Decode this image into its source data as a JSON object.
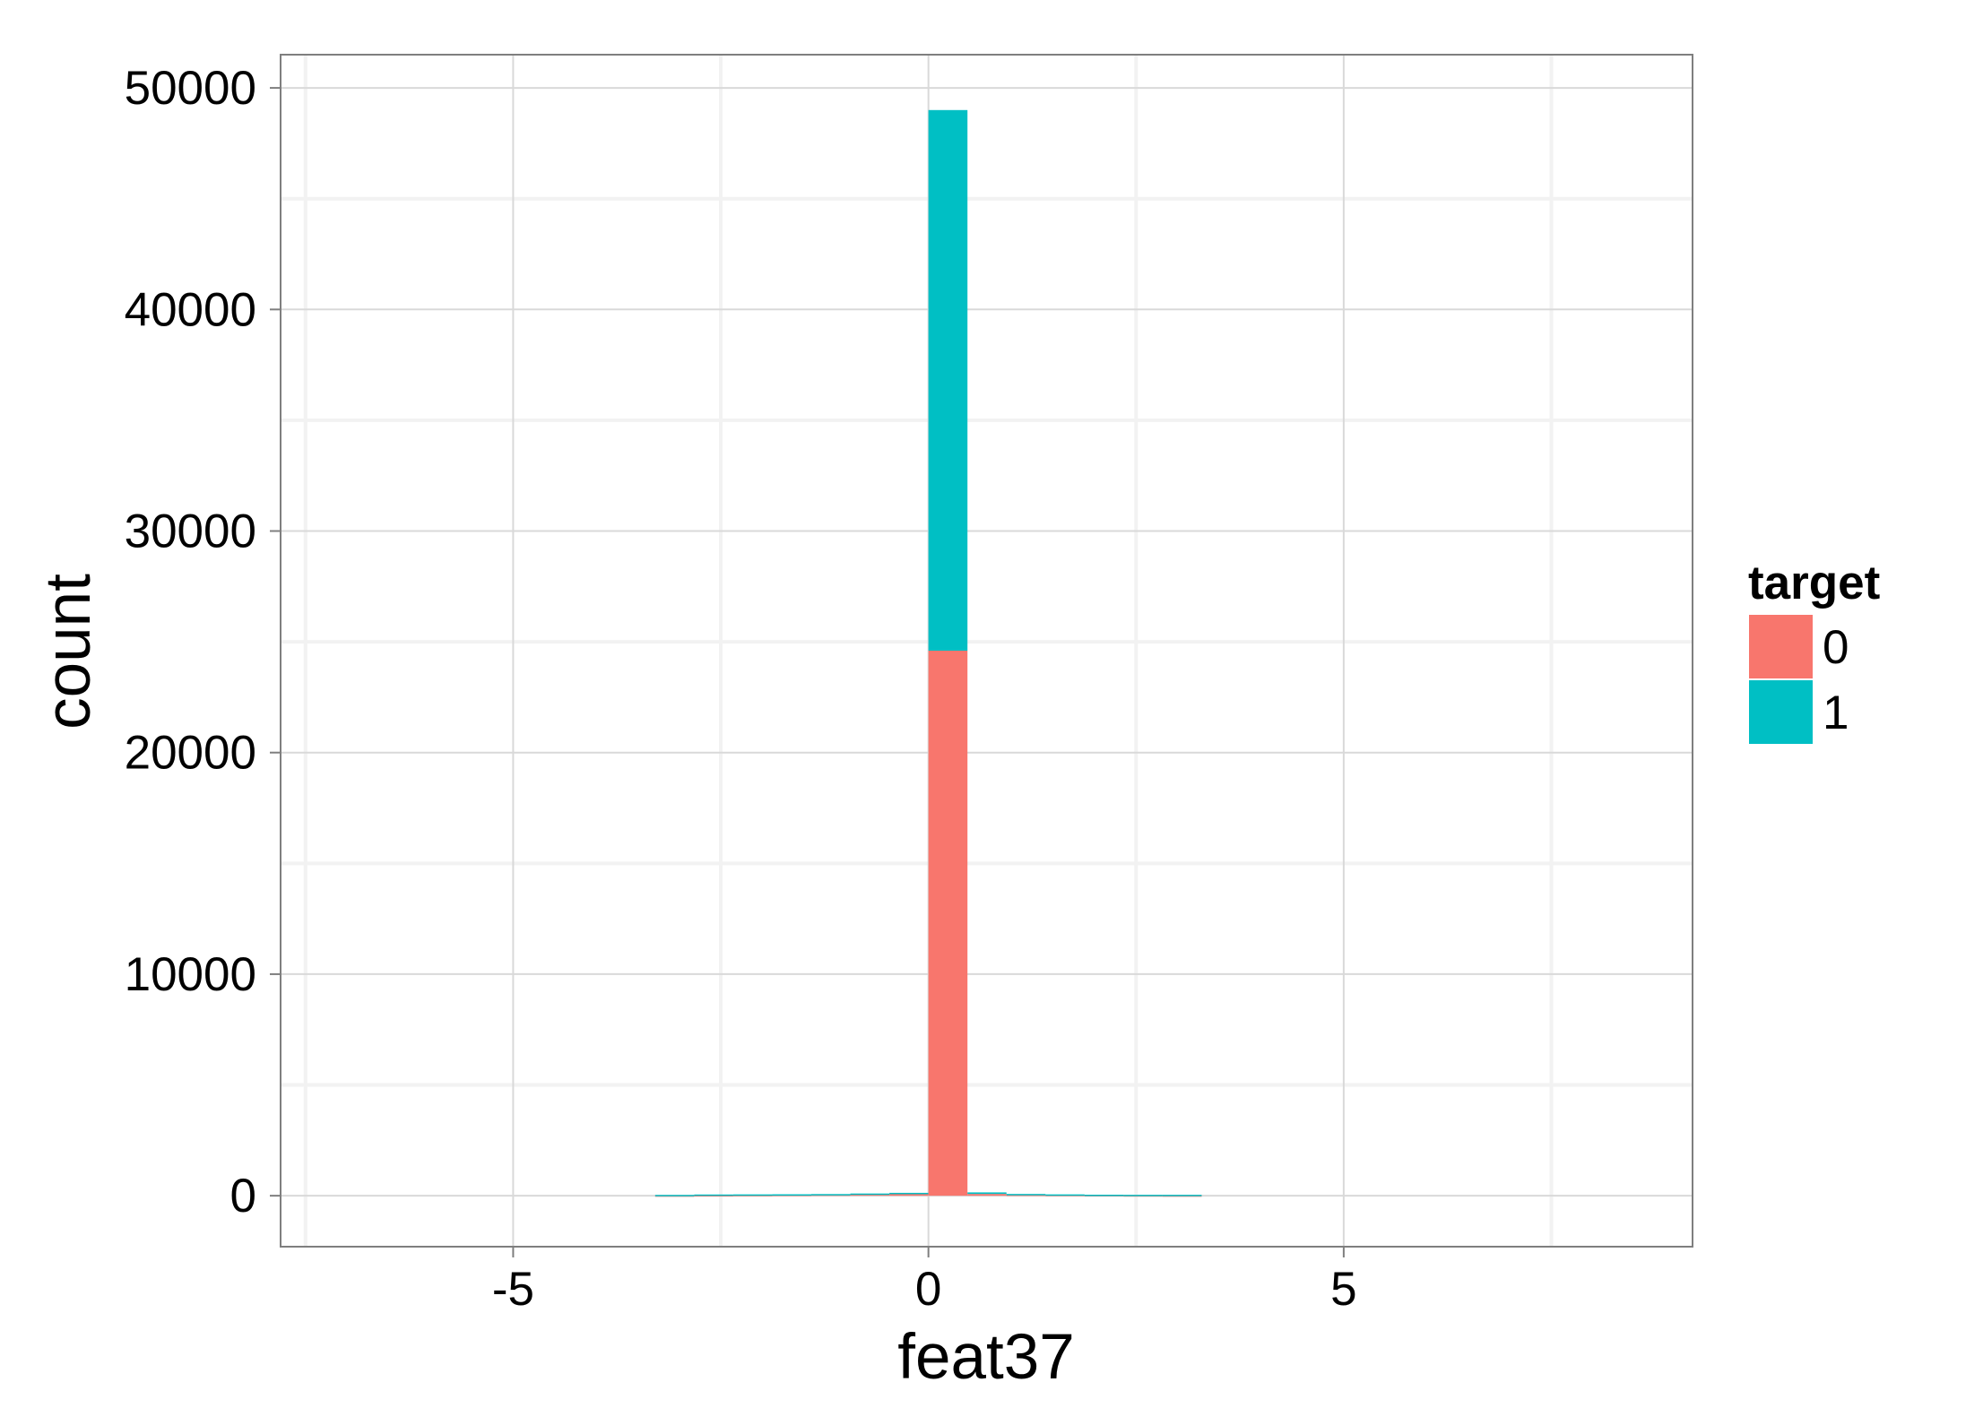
{
  "chart_data": {
    "type": "bar",
    "subtype": "stacked-histogram",
    "title": "",
    "xlabel": "feat37",
    "ylabel": "count",
    "xlim": [
      -7.8,
      9.2
    ],
    "ylim": [
      -2300,
      51500
    ],
    "x_ticks": [
      -5,
      0,
      5
    ],
    "x_tick_labels": [
      "-5",
      "0",
      "5"
    ],
    "y_ticks": [
      0,
      10000,
      20000,
      30000,
      40000,
      50000
    ],
    "y_tick_labels": [
      "0",
      "10000",
      "20000",
      "30000",
      "40000",
      "50000"
    ],
    "grid": true,
    "legend": {
      "title": "target",
      "position": "right",
      "entries": [
        {
          "label": "0",
          "color": "#F8766D"
        },
        {
          "label": "1",
          "color": "#00BFC4"
        }
      ]
    },
    "bin_width": 0.47,
    "bins_left_edge": [
      -3.29,
      -2.82,
      -2.35,
      -1.88,
      -1.41,
      -0.94,
      -0.47,
      0.0,
      0.47,
      0.94,
      1.41,
      1.88,
      2.35,
      2.82
    ],
    "series": [
      {
        "name": "0",
        "color": "#F8766D",
        "values": [
          15,
          25,
          35,
          45,
          55,
          70,
          90,
          24600,
          80,
          50,
          40,
          30,
          20,
          15
        ]
      },
      {
        "name": "1",
        "color": "#00BFC4",
        "values": [
          20,
          30,
          25,
          20,
          20,
          30,
          40,
          24400,
          70,
          30,
          20,
          15,
          20,
          25
        ]
      }
    ]
  }
}
